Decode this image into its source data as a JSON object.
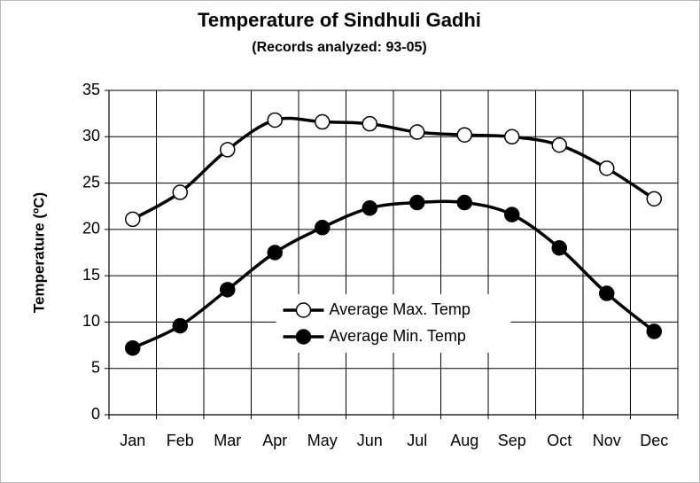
{
  "chart_data": {
    "type": "line",
    "title": "Temperature of Sindhuli Gadhi",
    "subtitle": "(Records analyzed: 93-05)",
    "y_label": "Temperature (ºC)",
    "categories": [
      "Jan",
      "Feb",
      "Mar",
      "Apr",
      "May",
      "Jun",
      "Jul",
      "Aug",
      "Sep",
      "Oct",
      "Nov",
      "Dec"
    ],
    "series": [
      {
        "name": "Average Max. Temp",
        "color": "#000000",
        "marker": "open",
        "values": [
          21.1,
          24.0,
          28.6,
          31.8,
          31.6,
          31.4,
          30.5,
          30.2,
          30.0,
          29.1,
          26.6,
          23.3
        ]
      },
      {
        "name": "Average Min. Temp",
        "color": "#000000",
        "marker": "filled",
        "values": [
          7.2,
          9.6,
          13.5,
          17.5,
          20.2,
          22.3,
          22.9,
          22.9,
          21.6,
          18.0,
          13.1,
          9.0
        ]
      }
    ],
    "ylim": [
      0,
      35
    ],
    "yticks": [
      0,
      5,
      10,
      15,
      20,
      25,
      30,
      35
    ],
    "grid": true,
    "smooth": true,
    "legend": "center"
  }
}
